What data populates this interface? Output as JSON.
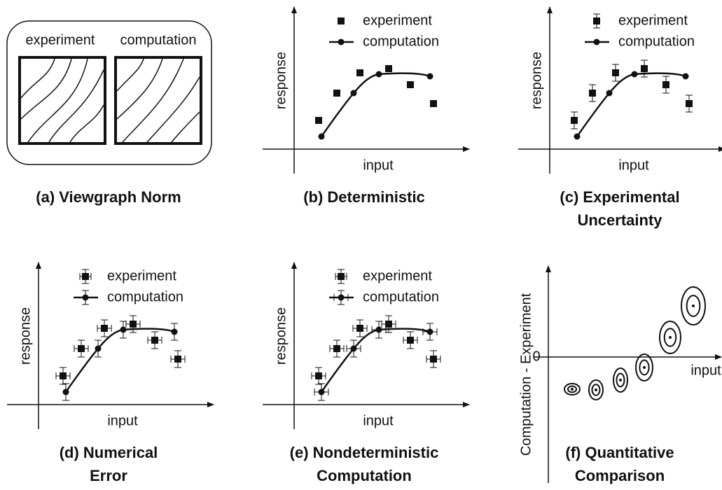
{
  "panels": [
    {
      "caption": [
        "(a) Viewgraph Norm"
      ],
      "image_labels": [
        "experiment",
        "computation"
      ]
    },
    {
      "caption": [
        "(b) Deterministic"
      ],
      "legend": [
        "experiment",
        "computation"
      ],
      "y_label": "response",
      "x_label": "input"
    },
    {
      "caption": [
        "(c) Experimental",
        "Uncertainty"
      ],
      "legend": [
        "experiment",
        "computation"
      ],
      "y_label": "response",
      "x_label": "input"
    },
    {
      "caption": [
        "(d) Numerical",
        "Error"
      ],
      "legend": [
        "experiment",
        "computation"
      ],
      "y_label": "response",
      "x_label": "input"
    },
    {
      "caption": [
        "(e) Nondeterministic",
        "Computation"
      ],
      "legend": [
        "experiment",
        "computation"
      ],
      "y_label": "response",
      "x_label": "input"
    },
    {
      "caption": [
        "(f) Quantitative",
        "Comparison"
      ],
      "y_label": "Computation - Experiment",
      "x_label": "input",
      "zero_label": "0"
    }
  ]
}
